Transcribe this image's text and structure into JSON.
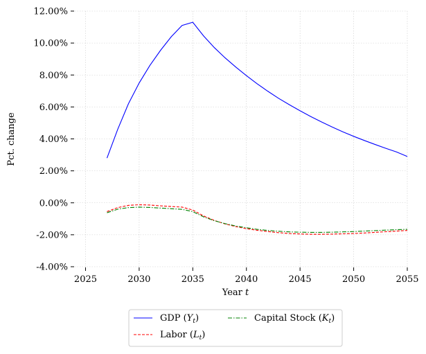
{
  "chart_data": {
    "type": "line",
    "xlabel_text": "Year ",
    "xlabel_var": "t",
    "ylabel": "Pct. change",
    "xlim": [
      2024,
      2055
    ],
    "ylim": [
      -4,
      12
    ],
    "xticks": [
      2025,
      2030,
      2035,
      2040,
      2045,
      2050,
      2055
    ],
    "yticks": [
      -4,
      -2,
      0,
      2,
      4,
      6,
      8,
      10,
      12
    ],
    "ytick_labels": [
      "-4.00%",
      "-2.00%",
      "0.00%",
      "2.00%",
      "4.00%",
      "6.00%",
      "8.00%",
      "10.00%",
      "12.00%"
    ],
    "grid": true,
    "legend_position": "bottom-center",
    "x": [
      2027,
      2028,
      2029,
      2030,
      2031,
      2032,
      2033,
      2034,
      2035,
      2036,
      2037,
      2038,
      2039,
      2040,
      2041,
      2042,
      2043,
      2044,
      2045,
      2046,
      2047,
      2048,
      2049,
      2050,
      2051,
      2052,
      2053,
      2054,
      2055
    ],
    "series": [
      {
        "name": "GDP (Y_t)",
        "label_main": "GDP (",
        "label_var": "Y",
        "label_sub": "t",
        "label_close": ")",
        "color": "#0000ff",
        "dash": "solid",
        "values": [
          2.8,
          4.6,
          6.2,
          7.5,
          8.6,
          9.55,
          10.4,
          11.1,
          11.3,
          10.45,
          9.72,
          9.08,
          8.5,
          7.96,
          7.45,
          6.98,
          6.54,
          6.14,
          5.76,
          5.4,
          5.06,
          4.74,
          4.44,
          4.16,
          3.9,
          3.65,
          3.41,
          3.18,
          2.9
        ]
      },
      {
        "name": "Labor (L_t)",
        "label_main": "Labor (",
        "label_var": "L",
        "label_sub": "t",
        "label_close": ")",
        "color": "#ff0000",
        "dash": "dashed",
        "values": [
          -0.55,
          -0.3,
          -0.16,
          -0.12,
          -0.14,
          -0.19,
          -0.23,
          -0.27,
          -0.45,
          -0.82,
          -1.1,
          -1.32,
          -1.49,
          -1.62,
          -1.72,
          -1.8,
          -1.87,
          -1.92,
          -1.95,
          -1.97,
          -1.97,
          -1.96,
          -1.94,
          -1.92,
          -1.89,
          -1.85,
          -1.81,
          -1.77,
          -1.73
        ]
      },
      {
        "name": "Capital Stock (K_t)",
        "label_main": "Capital Stock (",
        "label_var": "K",
        "label_sub": "t",
        "label_close": ")",
        "color": "#008000",
        "dash": "dashdot",
        "values": [
          -0.62,
          -0.4,
          -0.3,
          -0.27,
          -0.29,
          -0.33,
          -0.37,
          -0.41,
          -0.55,
          -0.88,
          -1.12,
          -1.3,
          -1.45,
          -1.56,
          -1.66,
          -1.73,
          -1.78,
          -1.82,
          -1.84,
          -1.85,
          -1.85,
          -1.84,
          -1.82,
          -1.8,
          -1.77,
          -1.74,
          -1.71,
          -1.68,
          -1.66
        ]
      }
    ]
  }
}
